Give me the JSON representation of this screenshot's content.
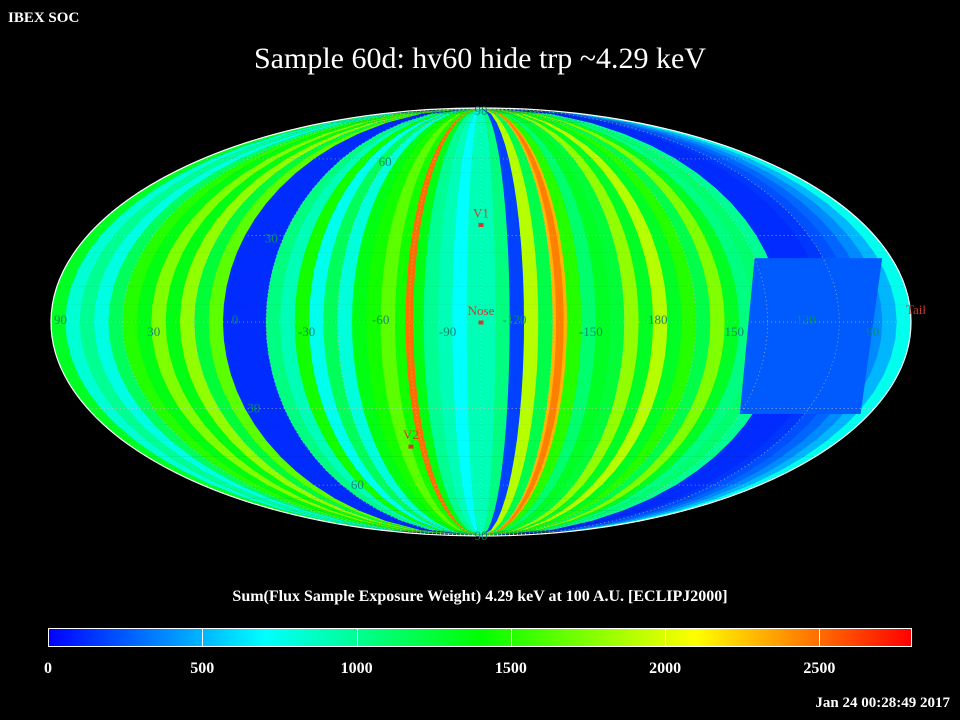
{
  "header": {
    "corner_label": "IBEX SOC",
    "title": "Sample 60d: hv60 hide trp ~4.29 keV",
    "timestamp": "Jan 24 00:28:49 2017"
  },
  "chart_data": {
    "type": "heatmap",
    "projection": "mollweide",
    "title": "Sample 60d: hv60 hide trp ~4.29 keV",
    "subtitle": "Sum(Flux Sample Exposure Weight)  4.29 keV at 100 A.U. [ECLIPJ2000]",
    "colorscale": [
      "#0000ff",
      "#00ffff",
      "#00ff00",
      "#ffff00",
      "#ff0000"
    ],
    "zlim": [
      0,
      2800
    ],
    "colorbar_ticks": [
      0,
      500,
      1000,
      1500,
      2000,
      2500
    ],
    "colorbar_tick_labels": [
      "0",
      "500",
      "1000",
      "1500",
      "2000",
      "2500"
    ],
    "longitude_labels": [
      "90",
      "30",
      "0",
      "-30",
      "-60",
      "-90",
      "-120",
      "-150",
      "180",
      "150",
      "120",
      "90"
    ],
    "latitude_labels": [
      "90",
      "60",
      "30",
      "30",
      "60",
      "90"
    ],
    "markers": [
      {
        "label": "V1",
        "lon_offset": 0,
        "lat": 34
      },
      {
        "label": "Nose",
        "lon_offset": 0,
        "lat": 0
      },
      {
        "label": "V2",
        "lon_offset": -36,
        "lat": -44
      },
      {
        "label": "Tail",
        "lon_offset": 180,
        "lat": 0
      }
    ],
    "strip_values": [
      1300,
      820,
      1000,
      780,
      1150,
      1500,
      1350,
      1750,
      1350,
      1800,
      1250,
      1650,
      120,
      120,
      120,
      1050,
      900,
      1450,
      750,
      1150,
      800,
      1350,
      1450,
      1650,
      1450,
      1350,
      1000,
      900,
      700,
      900,
      900,
      1050,
      180,
      1900,
      1200,
      2300,
      1500,
      1100,
      1300,
      1250,
      1800,
      1300,
      1900,
      1300,
      1500,
      1200,
      1750,
      1300,
      1050,
      1100,
      1000,
      120,
      120,
      120,
      150,
      220,
      280,
      380,
      500,
      750
    ],
    "hot_stripes": [
      {
        "lon_offset": -30,
        "value": 2500
      },
      {
        "lon_offset": 33,
        "value": 2450
      }
    ],
    "low_patch": {
      "lon_from": 120,
      "lon_to": 176,
      "lat_from": -32,
      "lat_to": 22,
      "value": 250
    },
    "grid": true
  }
}
